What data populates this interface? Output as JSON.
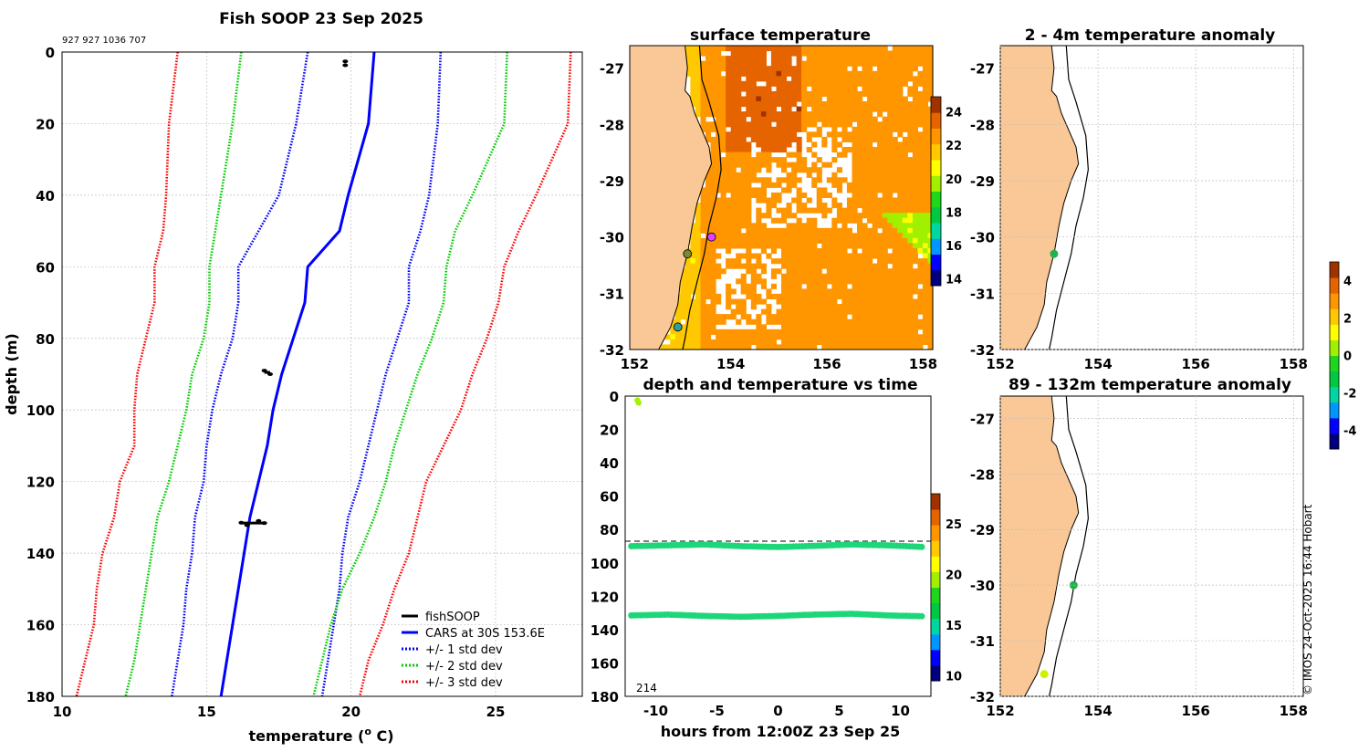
{
  "figure": {
    "copyright": "© IMOS 24-Oct-2025 16:44 Hobart",
    "land_color": "#f9c896",
    "palette": [
      "#00007f",
      "#0000ff",
      "#0096ff",
      "#00d6a0",
      "#00c840",
      "#1ed61e",
      "#a0f000",
      "#ffff00",
      "#ffc800",
      "#ff9600",
      "#e66400",
      "#a03200"
    ]
  },
  "chart_data": [
    {
      "id": "profile",
      "type": "line",
      "title": "Fish SOOP 23 Sep 2025",
      "subtitle": "927 927 1036 707",
      "xlabel": "temperature (",
      "xlabel_sup": "o",
      "xlabel_end": " C)",
      "ylabel": "depth (m)",
      "xlim": [
        10,
        28
      ],
      "ylim": [
        0,
        180
      ],
      "xticks": [
        "10",
        "15",
        "20",
        "25"
      ],
      "yticks": [
        "0",
        "20",
        "40",
        "60",
        "80",
        "100",
        "120",
        "140",
        "160",
        "180"
      ],
      "depth": [
        0,
        20,
        40,
        50,
        60,
        70,
        80,
        90,
        100,
        110,
        120,
        130,
        140,
        150,
        160,
        170,
        180
      ],
      "series": [
        {
          "name": "CARS at 30S 153.6E",
          "style": "solid",
          "color": "#0000ff",
          "values": [
            20.8,
            20.6,
            19.9,
            19.6,
            18.5,
            18.4,
            18.0,
            17.6,
            17.3,
            17.1,
            16.8,
            16.5,
            16.3,
            16.1,
            15.9,
            15.7,
            15.5
          ]
        },
        {
          "name": "+/- 1 std dev",
          "style": "dotted",
          "color": "#0000ff",
          "values": [
            23.1,
            23.0,
            22.7,
            22.4,
            22.0,
            22.0,
            21.6,
            21.2,
            20.9,
            20.6,
            20.3,
            19.9,
            19.7,
            19.6,
            19.4,
            19.2,
            19.0
          ]
        },
        {
          "name": "+/- 1 std dev lower",
          "style": "dotted",
          "color": "#0000ff",
          "legend": false,
          "values": [
            18.5,
            18.1,
            17.5,
            16.8,
            16.1,
            16.1,
            15.9,
            15.5,
            15.2,
            15.0,
            14.9,
            14.6,
            14.5,
            14.3,
            14.2,
            14.0,
            13.8
          ]
        },
        {
          "name": "+/- 2 std dev",
          "style": "dotted",
          "color": "#00cc00",
          "values": [
            25.4,
            25.3,
            24.2,
            23.6,
            23.3,
            23.2,
            22.8,
            22.3,
            21.9,
            21.5,
            21.2,
            20.8,
            20.3,
            19.7,
            19.3,
            19.0,
            18.7
          ]
        },
        {
          "name": "+/- 2 std dev lower",
          "style": "dotted",
          "color": "#00cc00",
          "legend": false,
          "values": [
            16.2,
            15.9,
            15.5,
            15.3,
            15.1,
            15.1,
            14.9,
            14.5,
            14.3,
            14.0,
            13.7,
            13.3,
            13.1,
            12.9,
            12.7,
            12.5,
            12.2
          ]
        },
        {
          "name": "+/- 3 std dev",
          "style": "dotted",
          "color": "#ff0000",
          "values": [
            27.6,
            27.5,
            26.4,
            25.8,
            25.3,
            25.1,
            24.7,
            24.2,
            23.8,
            23.2,
            22.6,
            22.3,
            22.0,
            21.5,
            21.1,
            20.6,
            20.3
          ]
        },
        {
          "name": "+/- 3 std dev lower",
          "style": "dotted",
          "color": "#ff0000",
          "legend": false,
          "values": [
            14.0,
            13.7,
            13.6,
            13.5,
            13.2,
            13.2,
            12.9,
            12.6,
            12.5,
            12.5,
            12.0,
            11.8,
            11.4,
            11.2,
            11.1,
            10.8,
            10.5
          ]
        }
      ],
      "observations": [
        {
          "name": "fishSOOP",
          "points": [
            [
              19.8,
              2.6
            ],
            [
              19.8,
              3.7
            ],
            [
              17.0,
              89
            ],
            [
              17.2,
              90
            ],
            [
              16.2,
              131.5
            ],
            [
              16.8,
              131
            ],
            [
              17.0,
              131.6
            ],
            [
              16.4,
              132.2
            ]
          ]
        }
      ],
      "legend": [
        "fishSOOP",
        "CARS at 30S 153.6E",
        "+/- 1 std dev",
        "+/- 2 std dev",
        "+/- 3 std dev"
      ],
      "legend_colors": [
        "#000000",
        "#0000ff",
        "#0000ff",
        "#00cc00",
        "#ff0000"
      ],
      "legend_styles": [
        "solid",
        "solid",
        "dotted",
        "dotted",
        "dotted"
      ],
      "legend_position": "bottom-right"
    },
    {
      "id": "sst_map",
      "type": "heatmap",
      "title": "surface temperature",
      "lon_lim": [
        151.9,
        158.2
      ],
      "lat_lim": [
        -32,
        -26.6
      ],
      "xticks": [
        "152",
        "154",
        "156",
        "158"
      ],
      "yticks": [
        "-27",
        "-28",
        "-29",
        "-30",
        "-31",
        "-32"
      ],
      "colorbar_ticks": [
        "14",
        "16",
        "18",
        "20",
        "22",
        "24"
      ],
      "colorbar_range": [
        13.6,
        24.9
      ],
      "markers": [
        {
          "lon": 153.6,
          "lat": -30.0,
          "color": "#e040ff"
        },
        {
          "lon": 153.1,
          "lat": -30.3,
          "color": "#7a8a30"
        },
        {
          "lon": 152.9,
          "lat": -31.6,
          "color": "#2aa0a0"
        }
      ]
    },
    {
      "id": "anom_shallow",
      "type": "scatter",
      "title": "2 - 4m temperature anomaly",
      "lon_lim": [
        152,
        158.2
      ],
      "lat_lim": [
        -32,
        -26.6
      ],
      "xticks": [
        "152",
        "154",
        "156",
        "158"
      ],
      "yticks": [
        "-27",
        "-28",
        "-29",
        "-30",
        "-31",
        "-32"
      ],
      "points": [
        {
          "lon": 153.1,
          "lat": -30.3,
          "anomaly": 0.8,
          "color": "#22b14c"
        }
      ]
    },
    {
      "id": "anom_deep",
      "type": "scatter",
      "title": "89 - 132m temperature anomaly",
      "lon_lim": [
        152,
        158.2
      ],
      "lat_lim": [
        -32,
        -26.6
      ],
      "xticks": [
        "152",
        "154",
        "156",
        "158"
      ],
      "yticks": [
        "-27",
        "-28",
        "-29",
        "-30",
        "-31",
        "-32"
      ],
      "points": [
        {
          "lon": 153.5,
          "lat": -30.0,
          "anomaly": 0.6,
          "color": "#22b14c"
        },
        {
          "lon": 152.9,
          "lat": -31.6,
          "anomaly": 2.6,
          "color": "#d0f000"
        }
      ],
      "colorbar_ticks": [
        "4",
        "2",
        "0",
        "-2",
        "-4"
      ],
      "colorbar_range": [
        -5,
        5
      ]
    },
    {
      "id": "depth_time",
      "type": "scatter",
      "title": "depth and temperature vs time",
      "xlabel": "hours from 12:00Z 23 Sep 25",
      "xlim": [
        -12.5,
        12.5
      ],
      "ylim": [
        0,
        180
      ],
      "xticks": [
        "-10",
        "-5",
        "0",
        "5",
        "10"
      ],
      "xtick_values": [
        -10,
        -5,
        0,
        5,
        10
      ],
      "yticks": [
        "0",
        "20",
        "40",
        "60",
        "80",
        "100",
        "120",
        "140",
        "160",
        "180"
      ],
      "reference_depth": 87,
      "count_label": "214",
      "colorbar_ticks": [
        "25",
        "20",
        "15",
        "10"
      ],
      "colorbar_range": [
        9.5,
        28
      ],
      "series": [
        {
          "name": "surface",
          "color": "#a8f000",
          "hours": [
            -11.5,
            -11.4
          ],
          "depths": [
            2.5,
            4
          ]
        },
        {
          "name": "mid",
          "color": "#1ed67a",
          "hours": [
            -12,
            -9,
            -6,
            -3,
            0,
            3,
            6,
            9,
            12
          ],
          "depths": [
            90,
            89.5,
            89,
            90,
            90.5,
            89.8,
            89,
            89.5,
            90.5
          ]
        },
        {
          "name": "deep",
          "color": "#1ed67a",
          "hours": [
            -12,
            -9,
            -6,
            -3,
            0,
            3,
            6,
            9,
            12
          ],
          "depths": [
            131.5,
            131,
            131.8,
            132.3,
            131.8,
            131,
            130.5,
            131.5,
            132
          ]
        }
      ]
    }
  ]
}
